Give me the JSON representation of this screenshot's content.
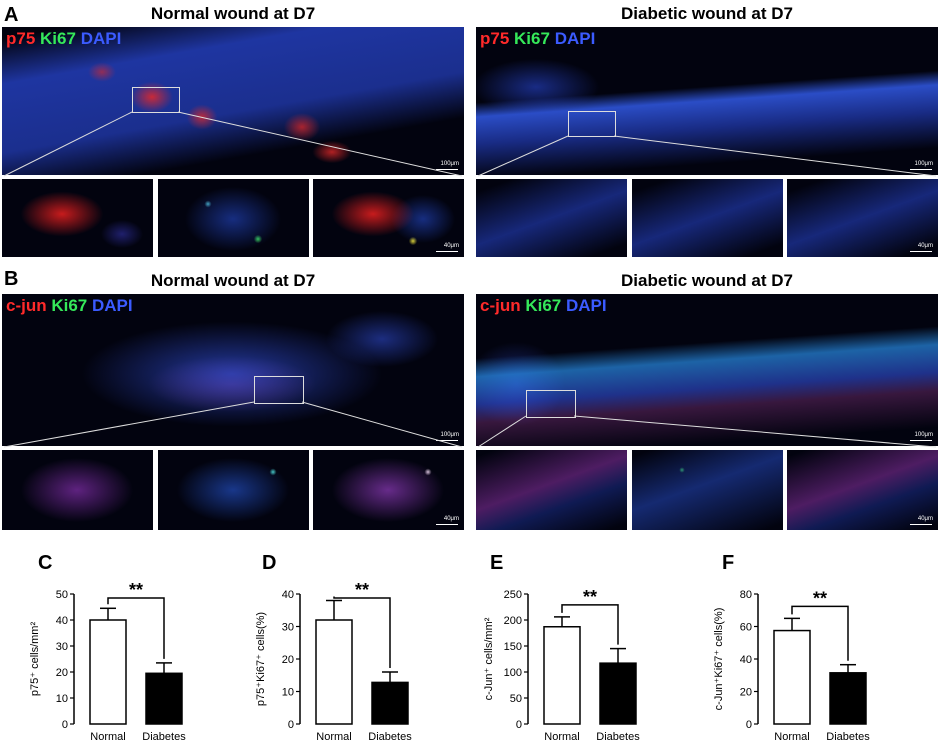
{
  "panels": {
    "A": "A",
    "B": "B",
    "C": "C",
    "D": "D",
    "E": "E",
    "F": "F"
  },
  "titles": {
    "normal": "Normal wound at D7",
    "diabetic": "Diabetic wound at D7"
  },
  "stain_labels": {
    "p75": "p75",
    "cjun": "c-jun",
    "ki67": "Ki67",
    "dapi": "DAPI"
  },
  "scale": {
    "main": "100μm",
    "inset": "40μm"
  },
  "colors": {
    "stain_red": "#ff2a2a",
    "stain_green": "#35e85a",
    "stain_blue": "#3b5bff",
    "bar_normal": "#ffffff",
    "bar_diabetes": "#000000"
  },
  "chart_data": [
    {
      "panel": "C",
      "type": "bar",
      "categories": [
        "Normal",
        "Diabetes"
      ],
      "values": [
        40,
        19.5
      ],
      "errors": [
        4.5,
        4
      ],
      "ylabel": "p75⁺ cells/mm²",
      "ylim": [
        0,
        50
      ],
      "yticks": [
        0,
        10,
        20,
        30,
        40,
        50
      ],
      "significance": "**"
    },
    {
      "panel": "D",
      "type": "bar",
      "categories": [
        "Normal",
        "Diabetes"
      ],
      "values": [
        32,
        12.8
      ],
      "errors": [
        6,
        3.2
      ],
      "ylabel": "p75⁺Ki67⁺ cells(%)",
      "ylim": [
        0,
        40
      ],
      "yticks": [
        0,
        10,
        20,
        30,
        40
      ],
      "significance": "**"
    },
    {
      "panel": "E",
      "type": "bar",
      "categories": [
        "Normal",
        "Diabetes"
      ],
      "values": [
        187,
        117
      ],
      "errors": [
        19,
        28
      ],
      "ylabel": "c-Jun⁺ cells/mm²",
      "ylim": [
        0,
        250
      ],
      "yticks": [
        0,
        50,
        100,
        150,
        200,
        250
      ],
      "significance": "**"
    },
    {
      "panel": "F",
      "type": "bar",
      "categories": [
        "Normal",
        "Diabetes"
      ],
      "values": [
        57.5,
        31.5
      ],
      "errors": [
        7.5,
        5
      ],
      "ylabel": "c-Jun⁺Ki67⁺ cells(%)",
      "ylim": [
        0,
        80
      ],
      "yticks": [
        0,
        20,
        40,
        60,
        80
      ],
      "significance": "**"
    }
  ]
}
